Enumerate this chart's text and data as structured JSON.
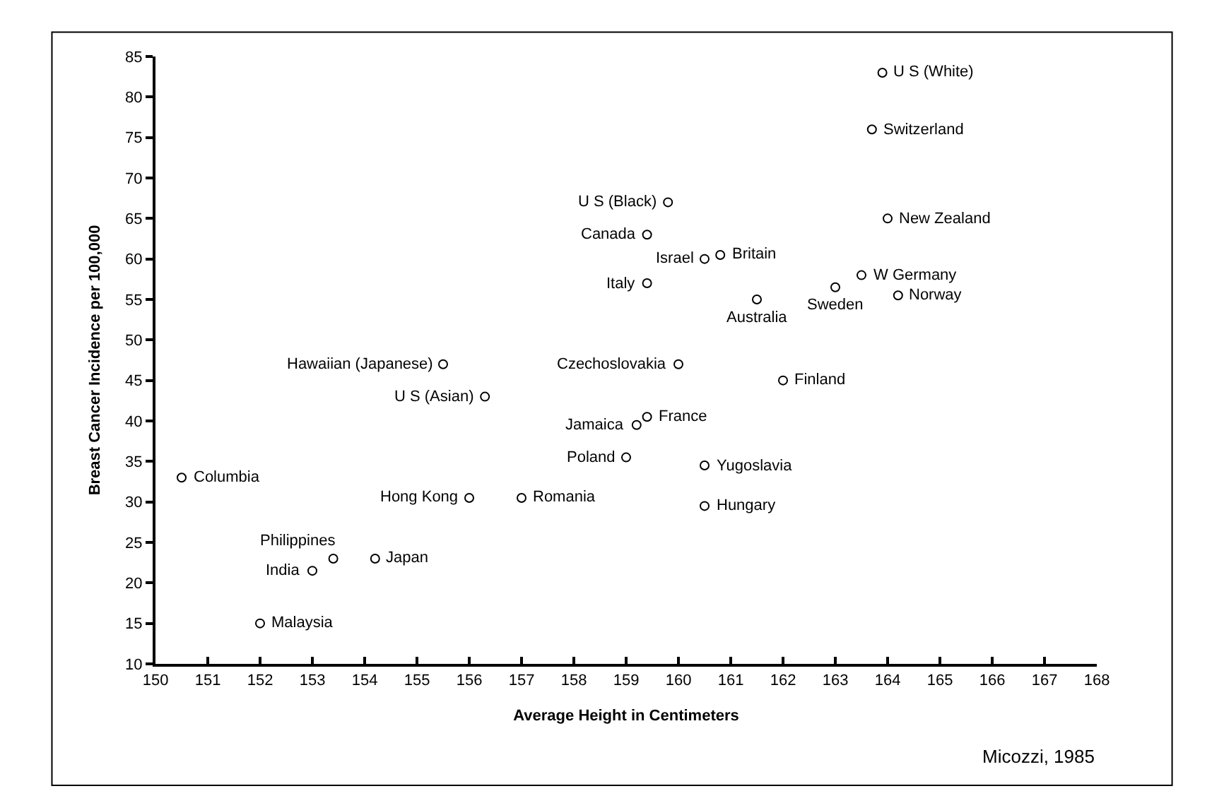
{
  "chart_data": {
    "type": "scatter",
    "xlabel": "Average Height in Centimeters",
    "ylabel": "Breast Cancer Incidence per 100,000",
    "x": [
      163.9,
      163.7,
      159.8,
      159.4,
      160.5,
      160.8,
      159.4,
      161.5,
      163,
      163.5,
      164.2,
      164,
      160,
      162,
      159.4,
      159.2,
      159,
      160.5,
      160.5,
      157,
      156,
      156.3,
      155.5,
      150.5,
      153.4,
      153,
      154.2,
      152
    ],
    "series": [
      {
        "color": "#000000",
        "values": [
          83,
          76,
          67,
          63,
          60,
          60.5,
          57,
          55,
          56.5,
          58,
          55.5,
          65,
          47,
          45,
          40.5,
          39.5,
          35.5,
          34.5,
          29.5,
          30.5,
          30.5,
          43,
          47,
          33,
          23,
          21.5,
          23,
          15
        ]
      }
    ],
    "xlim": [
      150,
      168
    ],
    "xticks": [
      150,
      151,
      152,
      153,
      154,
      155,
      156,
      157,
      158,
      159,
      160,
      161,
      162,
      163,
      164,
      165,
      166,
      167,
      168
    ],
    "ylim": [
      10,
      85
    ],
    "yticks": [
      10,
      15,
      20,
      25,
      30,
      35,
      40,
      45,
      50,
      55,
      60,
      65,
      70,
      75,
      80,
      85
    ],
    "marker": "circle",
    "grid": false,
    "annotations": [
      {
        "text": "U S (White)",
        "x": 163.9,
        "y": 83
      },
      {
        "text": "Switzerland",
        "x": 163.7,
        "y": 76
      },
      {
        "text": "U S (Black)",
        "x": 159.8,
        "y": 67
      },
      {
        "text": "Canada",
        "x": 159.4,
        "y": 63
      },
      {
        "text": "Israel",
        "x": 160.5,
        "y": 60
      },
      {
        "text": "Britain",
        "x": 160.8,
        "y": 60.5
      },
      {
        "text": "Italy",
        "x": 159.4,
        "y": 57
      },
      {
        "text": "Australia",
        "x": 161.5,
        "y": 55
      },
      {
        "text": "Sweden",
        "x": 163,
        "y": 56.5
      },
      {
        "text": "W Germany",
        "x": 163.5,
        "y": 58
      },
      {
        "text": "Norway",
        "x": 164.2,
        "y": 55.5
      },
      {
        "text": "New Zealand",
        "x": 164,
        "y": 65
      },
      {
        "text": "Czechoslovakia",
        "x": 160,
        "y": 47
      },
      {
        "text": "Finland",
        "x": 162,
        "y": 45
      },
      {
        "text": "France",
        "x": 159.4,
        "y": 40.5
      },
      {
        "text": "Jamaica",
        "x": 159.2,
        "y": 39.5
      },
      {
        "text": "Poland",
        "x": 159,
        "y": 35.5
      },
      {
        "text": "Yugoslavia",
        "x": 160.5,
        "y": 34.5
      },
      {
        "text": "Hungary",
        "x": 160.5,
        "y": 29.5
      },
      {
        "text": "Romania",
        "x": 157,
        "y": 30.5
      },
      {
        "text": "Hong Kong",
        "x": 156,
        "y": 30.5
      },
      {
        "text": "U S (Asian)",
        "x": 156.3,
        "y": 43
      },
      {
        "text": "Hawaiian (Japanese)",
        "x": 155.5,
        "y": 47
      },
      {
        "text": "Columbia",
        "x": 150.5,
        "y": 33
      },
      {
        "text": "Philippines",
        "x": 153.4,
        "y": 23
      },
      {
        "text": "India",
        "x": 153,
        "y": 21.5
      },
      {
        "text": "Japan",
        "x": 154.2,
        "y": 23
      },
      {
        "text": "Malaysia",
        "x": 152,
        "y": 15
      },
      "Micozzi, 1985"
    ]
  }
}
